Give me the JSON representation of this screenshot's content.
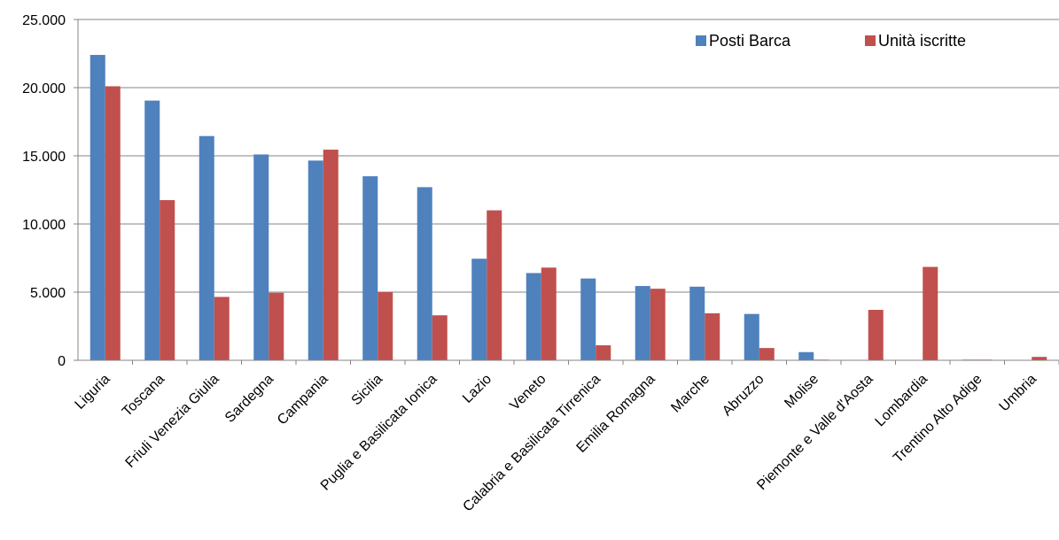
{
  "chart_data": {
    "type": "bar",
    "title": "",
    "xlabel": "",
    "ylabel": "",
    "ylim": [
      0,
      25000
    ],
    "yticks": [
      0,
      5000,
      10000,
      15000,
      20000,
      25000
    ],
    "ytick_labels": [
      "0",
      "5.000",
      "10.000",
      "15.000",
      "20.000",
      "25.000"
    ],
    "grid": "horizontal",
    "legend_position": "top-right",
    "categories": [
      "Liguria",
      "Toscana",
      "Friuli Venezia Giulia",
      "Sardegna",
      "Campania",
      "Sicilia",
      "Puglia e Basilicata Ionica",
      "Lazio",
      "Veneto",
      "Calabria e Basilicata Tirrenica",
      "Emilia Romagna",
      "Marche",
      "Abruzzo",
      "Molise",
      "Piemonte e Valle d'Aosta",
      "Lombardia",
      "Trentino Alto Adige",
      "Umbria"
    ],
    "series": [
      {
        "name": "Posti Barca",
        "color": "#4F81BD",
        "values": [
          22400,
          19050,
          16450,
          15100,
          14650,
          13500,
          12700,
          7450,
          6400,
          6000,
          5450,
          5400,
          3400,
          600,
          0,
          0,
          50,
          0
        ]
      },
      {
        "name": "Unità iscritte",
        "color": "#C0504D",
        "values": [
          20100,
          11750,
          4650,
          4950,
          15450,
          5000,
          3300,
          11000,
          6800,
          1100,
          5250,
          3450,
          900,
          50,
          3700,
          6850,
          50,
          250
        ]
      }
    ]
  }
}
